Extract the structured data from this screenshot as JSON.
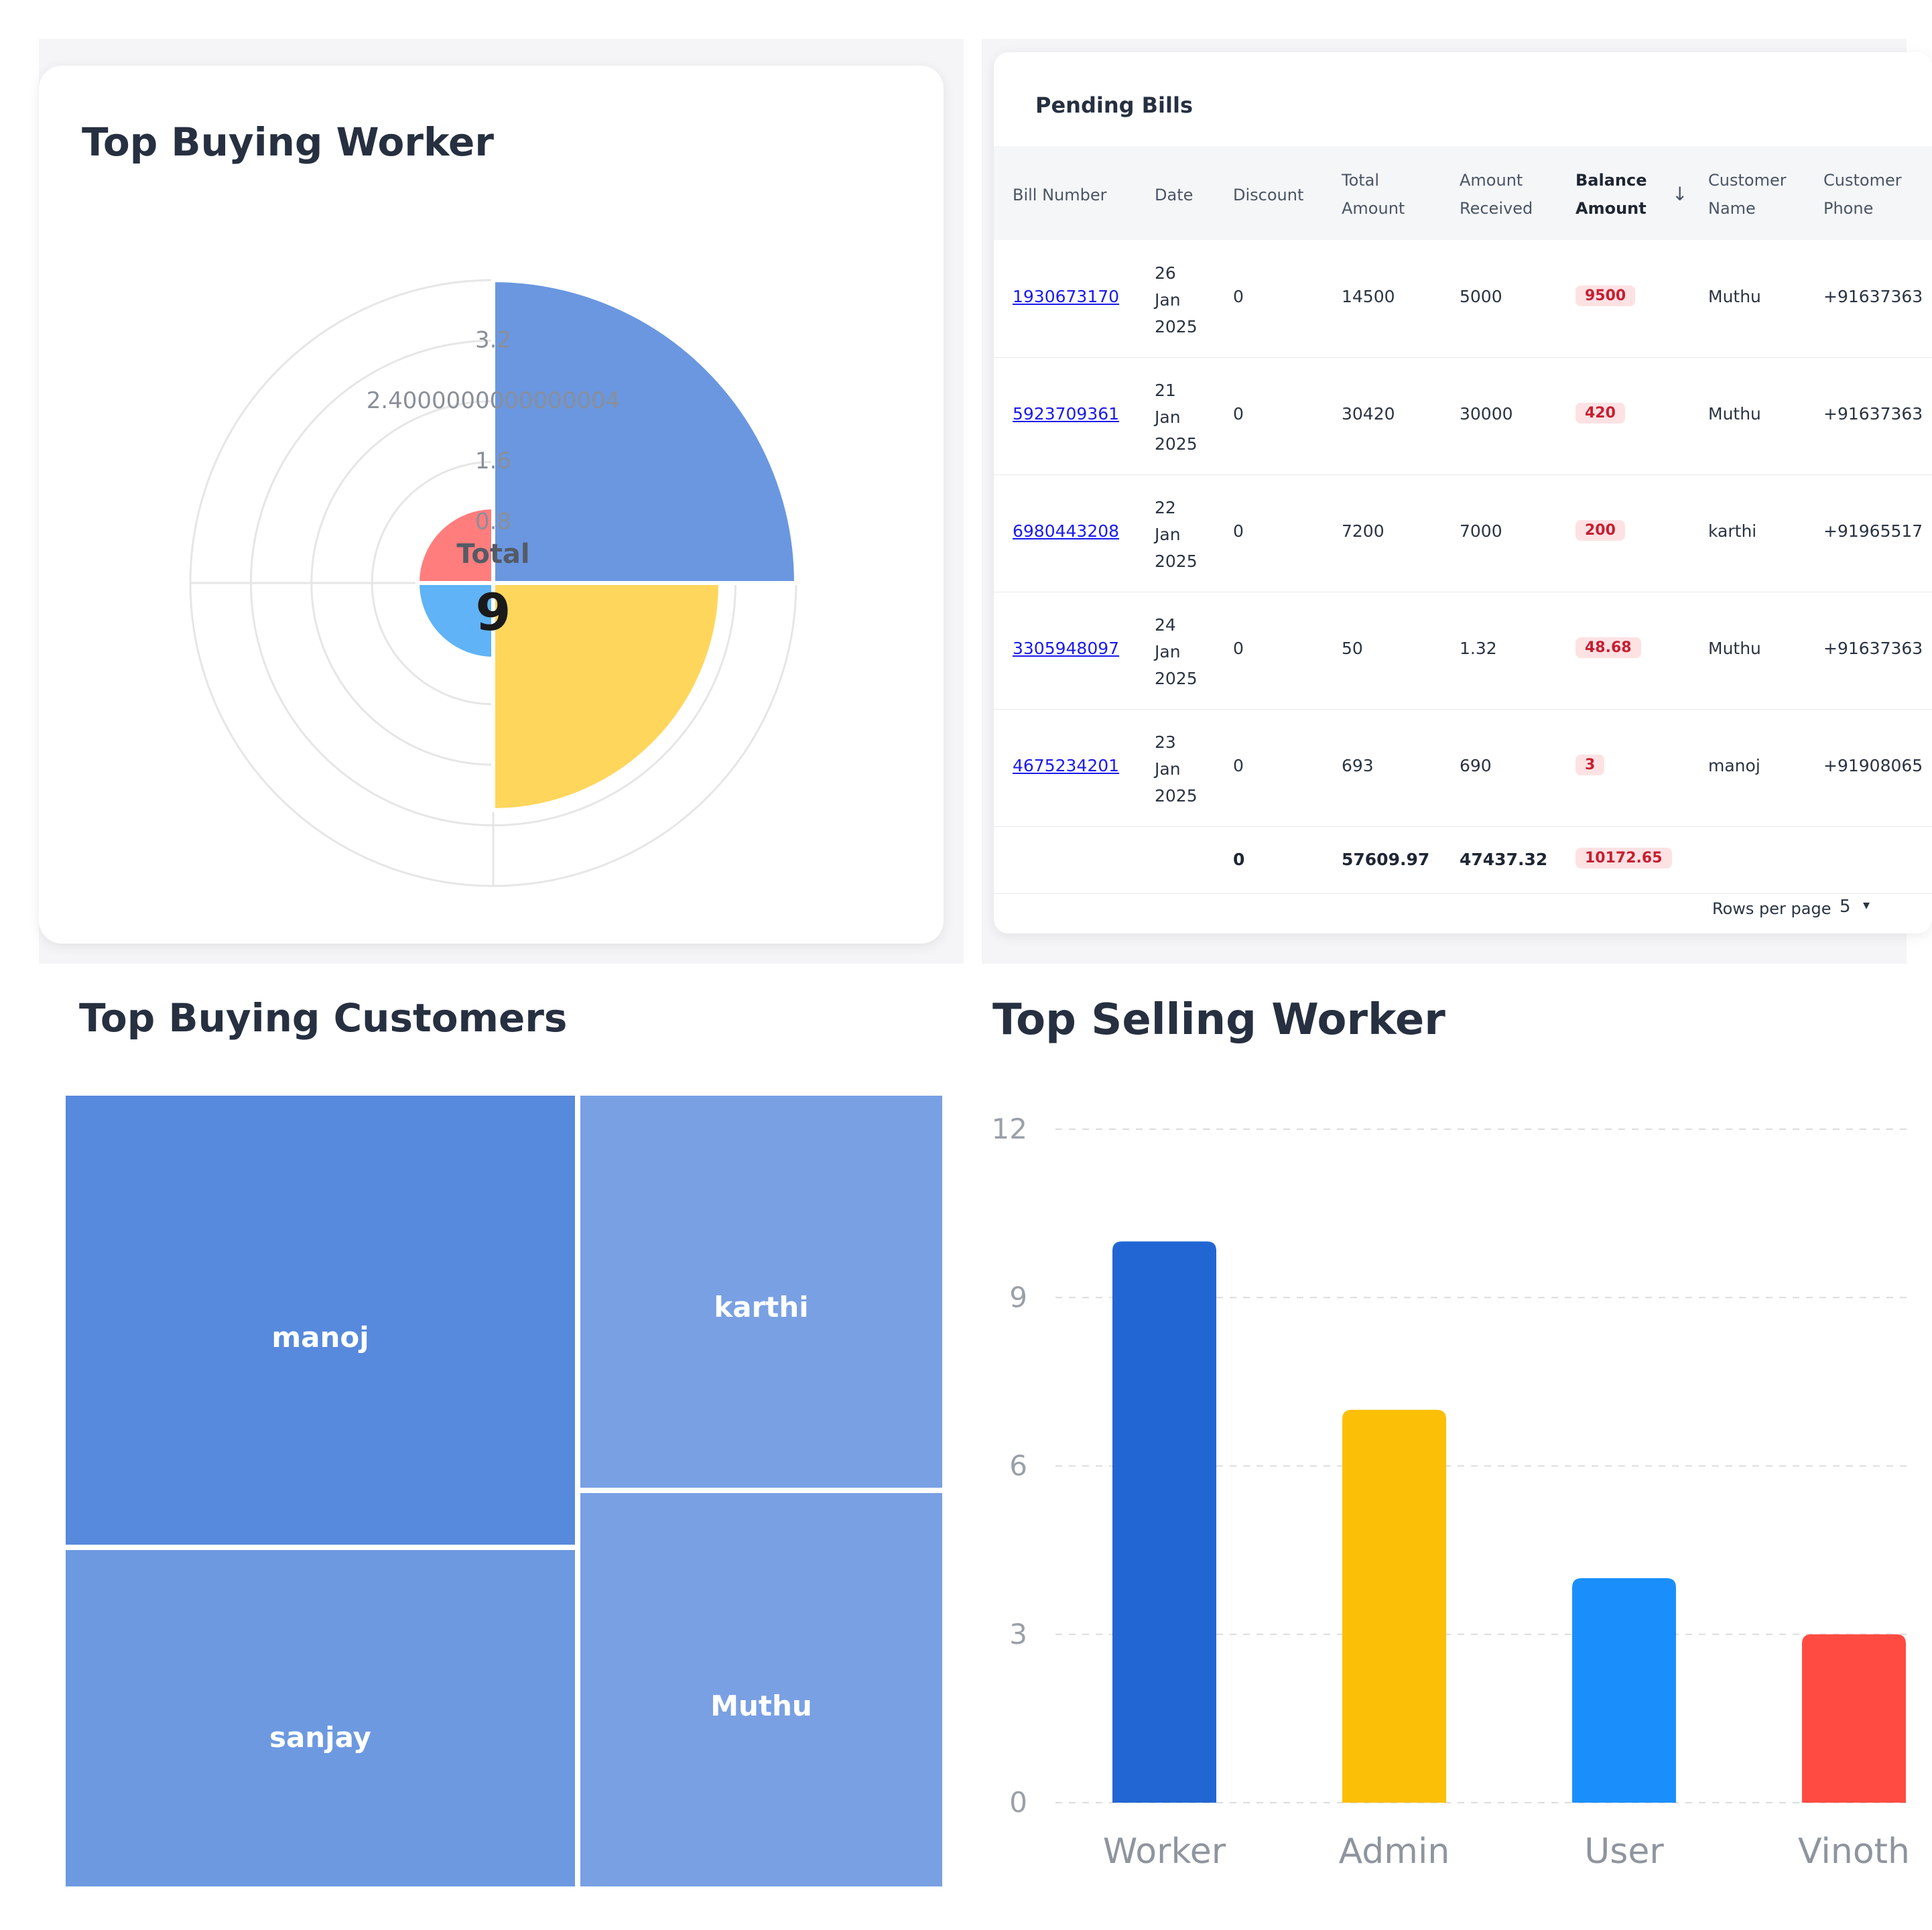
{
  "top_buying_worker": {
    "title": "Top Buying Worker",
    "center_label": "Total",
    "center_value": "9",
    "tick_labels": [
      "0.8",
      "1.6",
      "2.4000000000000004",
      "3.2"
    ],
    "chart_data": {
      "type": "polarArea",
      "title": "Top Buying Worker",
      "values": [
        4,
        3,
        1,
        1
      ],
      "rmax": 4,
      "ticks": [
        0.8,
        1.6,
        2.4000000000000004,
        3.2
      ],
      "colors": [
        "#6a97e0",
        "#ffd65c",
        "#5fb3f6",
        "#ff7d7d"
      ],
      "total": 9
    }
  },
  "pending_bills": {
    "title": "Pending Bills",
    "columns": [
      {
        "l1": "Bill Number",
        "l2": ""
      },
      {
        "l1": "Date",
        "l2": ""
      },
      {
        "l1": "Discount",
        "l2": ""
      },
      {
        "l1": "Total",
        "l2": "Amount"
      },
      {
        "l1": "Amount",
        "l2": "Received"
      },
      {
        "l1": "Balance",
        "l2": "Amount"
      },
      {
        "l1": "Customer",
        "l2": "Name"
      },
      {
        "l1": "Customer",
        "l2": "Phone"
      }
    ],
    "rows": [
      {
        "bill": "1930673170",
        "day": "26",
        "month": "Jan",
        "year": "2025",
        "discount": "0",
        "total": "14500",
        "received": "5000",
        "balance": "9500",
        "name": "Muthu",
        "phone": "+91637363"
      },
      {
        "bill": "5923709361",
        "day": "21",
        "month": "Jan",
        "year": "2025",
        "discount": "0",
        "total": "30420",
        "received": "30000",
        "balance": "420",
        "name": "Muthu",
        "phone": "+91637363"
      },
      {
        "bill": "6980443208",
        "day": "22",
        "month": "Jan",
        "year": "2025",
        "discount": "0",
        "total": "7200",
        "received": "7000",
        "balance": "200",
        "name": "karthi",
        "phone": "+91965517"
      },
      {
        "bill": "3305948097",
        "day": "24",
        "month": "Jan",
        "year": "2025",
        "discount": "0",
        "total": "50",
        "received": "1.32",
        "balance": "48.68",
        "name": "Muthu",
        "phone": "+91637363"
      },
      {
        "bill": "4675234201",
        "day": "23",
        "month": "Jan",
        "year": "2025",
        "discount": "0",
        "total": "693",
        "received": "690",
        "balance": "3",
        "name": "manoj",
        "phone": "+91908065"
      }
    ],
    "totals": {
      "discount": "0",
      "total": "57609.97",
      "received": "47437.32",
      "balance": "10172.65"
    },
    "rows_per_page_label": "Rows per page",
    "rows_per_page_value": "5"
  },
  "top_buying_customers": {
    "title": "Top Buying Customers",
    "chart_data": {
      "type": "treemap",
      "items": [
        {
          "name": "manoj",
          "color": "#5789dc"
        },
        {
          "name": "sanjay",
          "color": "#6c99e0"
        },
        {
          "name": "karthi",
          "color": "#79a0e3"
        },
        {
          "name": "Muthu",
          "color": "#79a0e3"
        }
      ]
    }
  },
  "top_selling_worker": {
    "title": "Top Selling Worker",
    "chart_data": {
      "type": "bar",
      "categories": [
        "Worker",
        "Admin",
        "User",
        "Vinoth"
      ],
      "values": [
        10,
        7,
        4,
        3
      ],
      "colors": [
        "#2266d4",
        "#fcbf08",
        "#1a8ffb",
        "#ff4b42"
      ],
      "yticks": [
        0,
        3,
        6,
        9,
        12
      ],
      "ylim": [
        0,
        12
      ]
    }
  }
}
